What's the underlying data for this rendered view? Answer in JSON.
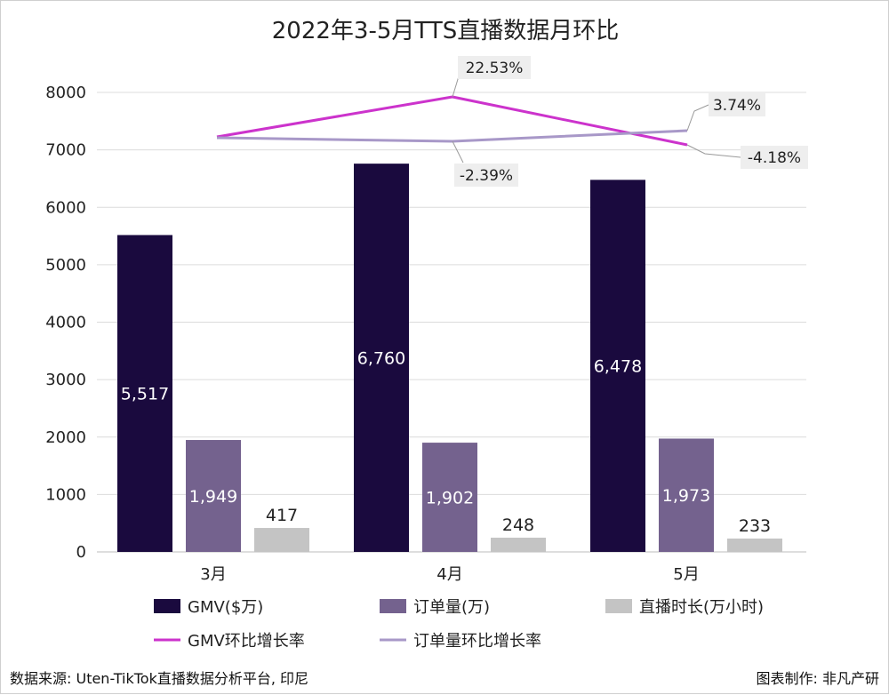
{
  "chart_data": {
    "type": "bar",
    "title": "2022年3-5月TTS直播数据月环比",
    "categories": [
      "3月",
      "4月",
      "5月"
    ],
    "ylim": [
      0,
      8000
    ],
    "yticks": [
      0,
      1000,
      2000,
      3000,
      4000,
      5000,
      6000,
      7000,
      8000
    ],
    "grid": true,
    "legend_position": "bottom",
    "series": [
      {
        "name": "GMV($万)",
        "values": [
          5517,
          6760,
          6478
        ],
        "labels": [
          "5,517",
          "6,760",
          "6,478"
        ],
        "color": "#1a0a3e",
        "label_color": "#ffffff",
        "label_position": "middle"
      },
      {
        "name": "订单量(万)",
        "values": [
          1949,
          1902,
          1973
        ],
        "labels": [
          "1,949",
          "1,902",
          "1,973"
        ],
        "color": "#74628e",
        "label_color": "#ffffff",
        "label_position": "middle"
      },
      {
        "name": "直播时长(万小时)",
        "values": [
          417,
          248,
          233
        ],
        "labels": [
          "417",
          "248",
          "233"
        ],
        "color": "#c4c4c4",
        "label_color": "#222222",
        "label_position": "above"
      }
    ],
    "line_series": [
      {
        "name": "GMV环比增长率",
        "color": "#cc33cc",
        "data_labels": [
          "",
          "22.53%",
          "-4.18%"
        ]
      },
      {
        "name": "订单量环比增长率",
        "color": "#a898c8",
        "data_labels": [
          "",
          "-2.39%",
          "3.74%"
        ]
      }
    ]
  },
  "footer": {
    "source": "数据来源: Uten-TikTok直播数据分析平台, 印尼",
    "credit": "图表制作: 非凡产研"
  }
}
